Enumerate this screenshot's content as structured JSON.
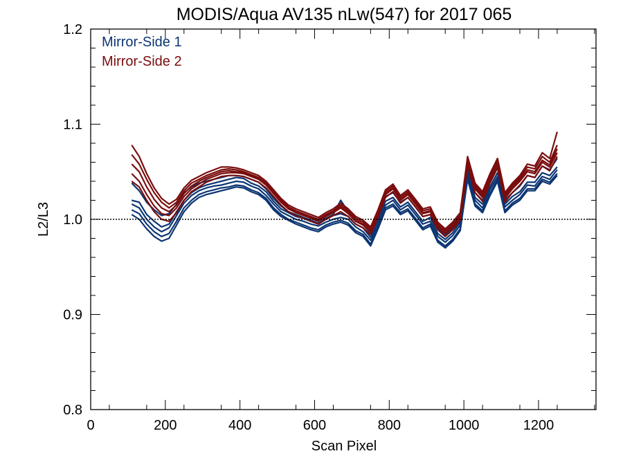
{
  "chart_data": {
    "type": "line",
    "title": "MODIS/Aqua AV135 nLw(547) for 2017 065",
    "xlabel": "Scan Pixel",
    "ylabel": "L2/L3",
    "xlim": [
      0,
      1354
    ],
    "ylim": [
      0.8,
      1.2
    ],
    "xticks": [
      0,
      200,
      400,
      600,
      800,
      1000,
      1200
    ],
    "yticks": [
      0.8,
      0.9,
      1.0,
      1.1,
      1.2
    ],
    "xtick_labels": [
      "0",
      "200",
      "400",
      "600",
      "800",
      "1000",
      "1200"
    ],
    "ytick_labels": [
      "0.8",
      "0.9",
      "1.0",
      "1.1",
      "1.2"
    ],
    "reference_line": 1.0,
    "legend_position": "top-left",
    "colors": {
      "ms1": "#0b3572",
      "ms2": "#7a0d0d"
    },
    "x": [
      110,
      130,
      150,
      170,
      190,
      210,
      230,
      250,
      270,
      290,
      310,
      330,
      350,
      370,
      390,
      410,
      430,
      450,
      470,
      490,
      510,
      530,
      550,
      570,
      590,
      610,
      630,
      650,
      670,
      690,
      710,
      730,
      750,
      770,
      790,
      810,
      830,
      850,
      870,
      890,
      910,
      930,
      950,
      970,
      990,
      1010,
      1030,
      1050,
      1070,
      1090,
      1110,
      1130,
      1150,
      1170,
      1190,
      1210,
      1230,
      1250
    ],
    "series": [
      {
        "name": "Mirror-Side 1",
        "color": "#0b3572",
        "lines": [
          [
            1.016,
            1.012,
            1.0,
            0.992,
            0.987,
            0.991,
            1.004,
            1.017,
            1.025,
            1.03,
            1.033,
            1.035,
            1.036,
            1.038,
            1.04,
            1.039,
            1.035,
            1.032,
            1.025,
            1.016,
            1.008,
            1.004,
            1.0,
            0.998,
            0.995,
            0.993,
            0.997,
            1.0,
            1.002,
            1.0,
            0.992,
            0.987,
            0.978,
            0.995,
            1.015,
            1.02,
            1.01,
            1.015,
            1.005,
            0.995,
            0.998,
            0.982,
            0.976,
            0.983,
            0.994,
            1.047,
            1.02,
            1.012,
            1.031,
            1.045,
            1.013,
            1.02,
            1.026,
            1.036,
            1.035,
            1.045,
            1.042,
            1.052
          ],
          [
            1.02,
            1.018,
            1.005,
            0.998,
            0.992,
            0.995,
            1.008,
            1.02,
            1.028,
            1.033,
            1.036,
            1.038,
            1.04,
            1.042,
            1.044,
            1.043,
            1.038,
            1.035,
            1.029,
            1.019,
            1.011,
            1.007,
            1.003,
            1.001,
            0.998,
            0.995,
            1.0,
            1.004,
            1.006,
            1.003,
            0.995,
            0.991,
            0.981,
            0.999,
            1.019,
            1.023,
            1.013,
            1.018,
            1.008,
            0.998,
            1.002,
            0.985,
            0.979,
            0.986,
            0.997,
            1.051,
            1.023,
            1.016,
            1.034,
            1.049,
            1.016,
            1.024,
            1.029,
            1.039,
            1.039,
            1.049,
            1.046,
            1.055
          ],
          [
            1.01,
            1.006,
            0.995,
            0.987,
            0.982,
            0.985,
            0.998,
            1.012,
            1.02,
            1.026,
            1.029,
            1.031,
            1.033,
            1.034,
            1.036,
            1.035,
            1.031,
            1.028,
            1.022,
            1.012,
            1.005,
            1.0,
            0.997,
            0.994,
            0.991,
            0.989,
            0.994,
            0.997,
            0.999,
            0.996,
            0.988,
            0.984,
            0.974,
            0.992,
            1.012,
            1.016,
            1.007,
            1.011,
            1.001,
            0.991,
            0.995,
            0.978,
            0.972,
            0.979,
            0.99,
            1.044,
            1.016,
            1.009,
            1.027,
            1.042,
            1.009,
            1.017,
            1.022,
            1.032,
            1.032,
            1.042,
            1.039,
            1.048
          ],
          [
            1.038,
            1.03,
            1.018,
            1.01,
            1.004,
            1.006,
            1.016,
            1.028,
            1.034,
            1.038,
            1.04,
            1.042,
            1.044,
            1.046,
            1.046,
            1.045,
            1.042,
            1.039,
            1.032,
            1.022,
            1.014,
            1.008,
            1.005,
            1.002,
            0.999,
            0.996,
            1.001,
            1.005,
            1.02,
            1.008,
            0.998,
            0.994,
            0.986,
            1.003,
            1.024,
            1.028,
            1.018,
            1.023,
            1.013,
            1.003,
            1.005,
            0.99,
            0.984,
            0.99,
            1.0,
            1.055,
            1.028,
            1.02,
            1.04,
            1.055,
            1.02,
            1.028,
            1.035,
            1.046,
            1.044,
            1.056,
            1.052,
            1.064
          ],
          [
            1.005,
            1.0,
            0.99,
            0.982,
            0.977,
            0.98,
            0.994,
            1.008,
            1.017,
            1.023,
            1.026,
            1.028,
            1.03,
            1.032,
            1.034,
            1.033,
            1.029,
            1.026,
            1.02,
            1.01,
            1.003,
            0.999,
            0.995,
            0.992,
            0.989,
            0.987,
            0.992,
            0.995,
            0.997,
            0.994,
            0.986,
            0.982,
            0.972,
            0.99,
            1.01,
            1.014,
            1.005,
            1.009,
            0.999,
            0.989,
            0.993,
            0.976,
            0.97,
            0.977,
            0.988,
            1.042,
            1.014,
            1.007,
            1.025,
            1.04,
            1.007,
            1.015,
            1.02,
            1.03,
            1.03,
            1.04,
            1.037,
            1.046
          ]
        ]
      },
      {
        "name": "Mirror-Side 2",
        "color": "#7a0d0d",
        "lines": [
          [
            1.048,
            1.04,
            1.026,
            1.014,
            1.006,
            1.004,
            1.012,
            1.024,
            1.032,
            1.037,
            1.042,
            1.045,
            1.048,
            1.049,
            1.049,
            1.048,
            1.045,
            1.042,
            1.036,
            1.027,
            1.018,
            1.011,
            1.007,
            1.004,
            1.001,
            0.998,
            1.003,
            1.007,
            1.012,
            1.006,
            0.998,
            0.994,
            0.987,
            1.005,
            1.026,
            1.032,
            1.02,
            1.026,
            1.016,
            1.006,
            1.008,
            0.992,
            0.985,
            0.992,
            1.002,
            1.06,
            1.032,
            1.023,
            1.042,
            1.058,
            1.022,
            1.032,
            1.04,
            1.05,
            1.048,
            1.06,
            1.055,
            1.07
          ],
          [
            1.068,
            1.058,
            1.042,
            1.028,
            1.018,
            1.012,
            1.018,
            1.03,
            1.038,
            1.042,
            1.046,
            1.049,
            1.052,
            1.053,
            1.052,
            1.05,
            1.047,
            1.044,
            1.038,
            1.029,
            1.02,
            1.013,
            1.009,
            1.006,
            1.003,
            1.0,
            1.005,
            1.009,
            1.015,
            1.009,
            1.001,
            0.997,
            0.99,
            1.008,
            1.029,
            1.035,
            1.023,
            1.029,
            1.019,
            1.009,
            1.011,
            0.995,
            0.988,
            0.995,
            1.005,
            1.064,
            1.036,
            1.027,
            1.046,
            1.062,
            1.026,
            1.036,
            1.044,
            1.055,
            1.053,
            1.066,
            1.06,
            1.078
          ],
          [
            1.04,
            1.034,
            1.02,
            1.008,
            1.0,
            0.998,
            1.007,
            1.02,
            1.029,
            1.034,
            1.039,
            1.042,
            1.045,
            1.046,
            1.046,
            1.045,
            1.042,
            1.039,
            1.033,
            1.024,
            1.015,
            1.008,
            1.004,
            1.001,
            0.998,
            0.995,
            1.0,
            1.004,
            1.008,
            1.003,
            0.995,
            0.991,
            0.984,
            1.002,
            1.023,
            1.029,
            1.017,
            1.023,
            1.013,
            1.003,
            1.005,
            0.989,
            0.982,
            0.989,
            0.999,
            1.056,
            1.028,
            1.019,
            1.038,
            1.054,
            1.018,
            1.028,
            1.036,
            1.046,
            1.044,
            1.056,
            1.051,
            1.066
          ],
          [
            1.058,
            1.05,
            1.034,
            1.021,
            1.012,
            1.008,
            1.015,
            1.027,
            1.035,
            1.04,
            1.044,
            1.047,
            1.05,
            1.051,
            1.05,
            1.049,
            1.046,
            1.043,
            1.037,
            1.028,
            1.019,
            1.012,
            1.008,
            1.005,
            1.002,
            0.999,
            1.004,
            1.008,
            1.013,
            1.007,
            0.999,
            0.995,
            0.988,
            1.006,
            1.027,
            1.033,
            1.021,
            1.027,
            1.017,
            1.007,
            1.009,
            0.993,
            0.986,
            0.993,
            1.003,
            1.062,
            1.034,
            1.025,
            1.044,
            1.06,
            1.024,
            1.034,
            1.042,
            1.052,
            1.05,
            1.062,
            1.057,
            1.074
          ],
          [
            1.078,
            1.066,
            1.048,
            1.033,
            1.022,
            1.016,
            1.021,
            1.033,
            1.041,
            1.045,
            1.049,
            1.052,
            1.055,
            1.055,
            1.054,
            1.052,
            1.049,
            1.046,
            1.04,
            1.031,
            1.022,
            1.015,
            1.011,
            1.008,
            1.005,
            1.002,
            1.007,
            1.011,
            1.017,
            1.011,
            1.003,
            0.999,
            0.992,
            1.01,
            1.031,
            1.037,
            1.025,
            1.031,
            1.021,
            1.011,
            1.013,
            0.997,
            0.99,
            0.997,
            1.007,
            1.066,
            1.038,
            1.029,
            1.048,
            1.064,
            1.028,
            1.038,
            1.046,
            1.058,
            1.056,
            1.07,
            1.064,
            1.092
          ]
        ]
      }
    ]
  }
}
